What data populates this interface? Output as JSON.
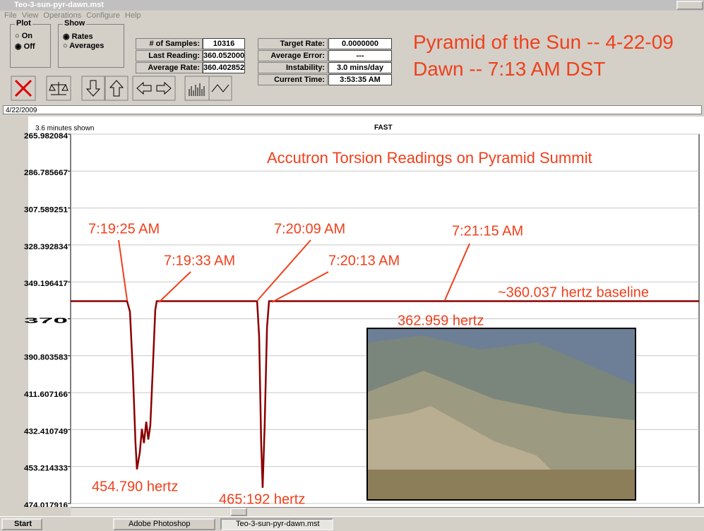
{
  "window": {
    "title": "Teo-3-sun-pyr-dawn.mst",
    "menu": [
      "File",
      "View",
      "Operations",
      "Configure",
      "Help"
    ]
  },
  "controls": {
    "plot": {
      "label": "Plot",
      "options": [
        "On",
        "Off"
      ]
    },
    "show": {
      "label": "Show",
      "options": [
        "Rates",
        "Averages"
      ]
    },
    "fields": [
      {
        "label": "# of Samples:",
        "value": "10316"
      },
      {
        "label": "Last Reading:",
        "value": "360.052000"
      },
      {
        "label": "Average Rate:",
        "value": "360.402852"
      },
      {
        "label": "Target Rate:",
        "value": "0.0000000"
      },
      {
        "label": "Average Error:",
        "value": "---"
      },
      {
        "label": "Instability:",
        "value": "3.0 mins/day"
      },
      {
        "label": "Current Time:",
        "value": "3:53:35 AM"
      }
    ],
    "date": "4/22/2009"
  },
  "headline": [
    "Pyramid of the Sun -- 4-22-09",
    "Dawn -- 7:13 AM DST"
  ],
  "chart_data": {
    "type": "line",
    "title": "Accutron Torsion Readings on Pyramid Summit",
    "span_label": "3.6 minutes shown",
    "mode_label": "FAST",
    "x": [
      0,
      19.4,
      20.4,
      21.4,
      22.3,
      22.8,
      23.8,
      24.5,
      25.2,
      26,
      26.7,
      27.4,
      28.2,
      29.1,
      29.6,
      64.1,
      64.8,
      65.5,
      66,
      66.7,
      67.5,
      68.2,
      216
    ],
    "xlim": [
      0,
      216
    ],
    "series": [
      {
        "name": "Rates",
        "color": "#8b0000",
        "values": [
          360.037,
          360.037,
          366,
          400,
          440,
          454.79,
          445,
          432,
          440,
          428,
          438,
          430,
          400,
          365,
          360.037,
          360.037,
          380,
          440,
          465.192,
          430,
          375,
          360.037,
          360.037
        ]
      }
    ],
    "ylim": [
      265.982084,
      474.017916
    ],
    "inverted": true,
    "yticks": [
      265.982084,
      286.785667,
      307.589251,
      328.392834,
      349.196417,
      370.0,
      390.803583,
      411.607166,
      432.410749,
      453.214333,
      474.017916
    ],
    "grid": true,
    "annotations": [
      "7:19:25 AM",
      "7:19:33 AM",
      "7:20:09 AM",
      "7:20:13 AM",
      "7:21:15 AM",
      "~360.037 hertz baseline",
      "362.959 hertz",
      "454.790 hertz",
      "465:192 hertz"
    ]
  },
  "taskbar": {
    "start": "Start",
    "items": [
      "Adobe Photoshop",
      "Teo-3-sun-pyr-dawn.mst"
    ]
  }
}
